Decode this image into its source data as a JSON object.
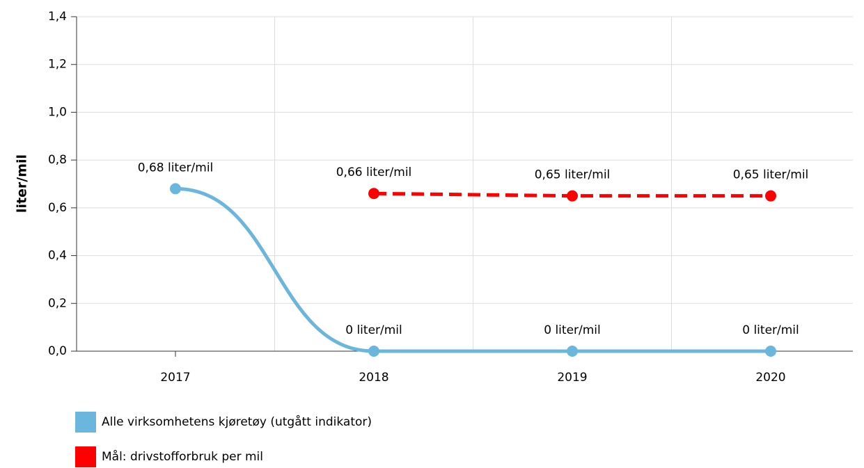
{
  "chart_data": {
    "type": "line",
    "y_label": "liter/mil",
    "categories": [
      "2017",
      "2018",
      "2019",
      "2020"
    ],
    "series": [
      {
        "name": "Alle virksomhetens kjøretøy (utgått indikator)",
        "color": "#6ab6dc",
        "smooth": true,
        "dashed": false,
        "values": [
          0.68,
          0,
          0,
          0
        ],
        "value_labels": [
          "0,68 liter/mil",
          "0 liter/mil",
          "0 liter/mil",
          "0 liter/mil"
        ]
      },
      {
        "name": "Mål: drivstofforbruk per mil",
        "color": "#ff0000",
        "smooth": false,
        "dashed": true,
        "values": [
          null,
          0.66,
          0.65,
          0.65
        ],
        "value_labels": [
          null,
          "0,66 liter/mil",
          "0,65 liter/mil",
          "0,65 liter/mil"
        ]
      }
    ],
    "ylim": [
      0,
      1.4
    ],
    "yticks": [
      {
        "value": 0,
        "label": "0,0"
      },
      {
        "value": 0.2,
        "label": "0,2"
      },
      {
        "value": 0.4,
        "label": "0,4"
      },
      {
        "value": 0.6,
        "label": "0,6"
      },
      {
        "value": 0.8,
        "label": "0,8"
      },
      {
        "value": 1.0,
        "label": "1,0"
      },
      {
        "value": 1.2,
        "label": "1,2"
      },
      {
        "value": 1.4,
        "label": "1,4"
      }
    ],
    "grid": true
  }
}
